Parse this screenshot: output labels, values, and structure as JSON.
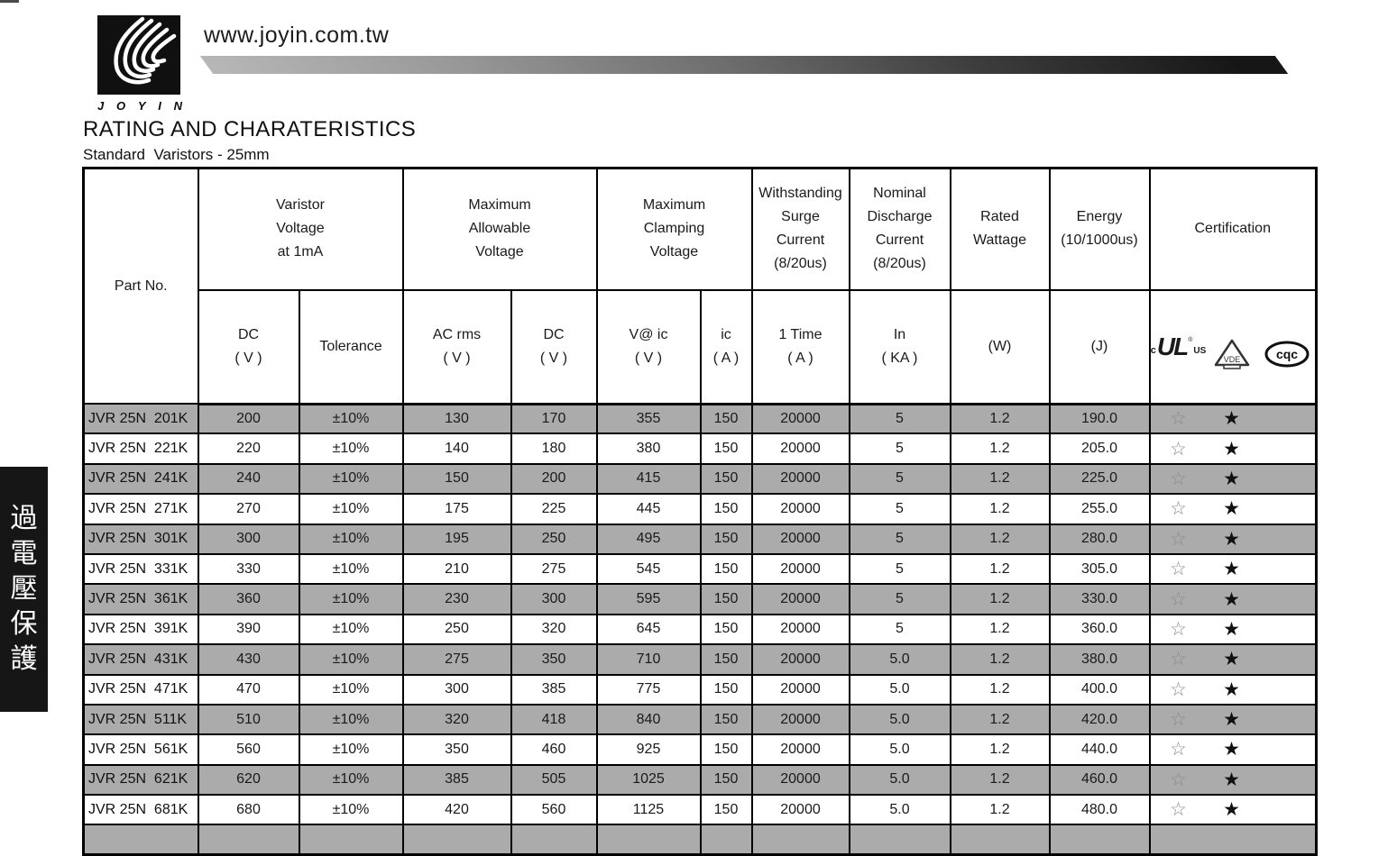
{
  "header": {
    "url_text": "www.joyin.com.tw",
    "logo_text": "JOYIN",
    "title": "RATING AND CHARATERISTICS",
    "subtitle": "Standard  Varistors - 25mm"
  },
  "sidebar": {
    "vertical_text": "過電壓保護"
  },
  "table": {
    "group_headers": {
      "part_no": "Part No.",
      "varistor_voltage": "Varistor\nVoltage\nat 1mA",
      "max_allowable": "Maximum\nAllowable\nVoltage",
      "max_clamping": "Maximum\nClamping\nVoltage",
      "surge": "Withstanding\nSurge\nCurrent\n(8/20us)",
      "discharge": "Nominal\nDischarge\nCurrent\n(8/20us)",
      "rated_wattage": "Rated\nWattage",
      "energy": "Energy\n(10/1000us)",
      "certification": "Certification"
    },
    "sub_headers": {
      "dc_v": "DC\n( V )",
      "tolerance": "Tolerance",
      "ac_rms": "AC rms\n( V )",
      "dc_v2": "DC\n( V )",
      "v_at_ic": "V@ ic\n( V )",
      "ic_a": "ic\n( A )",
      "one_time": "1 Time\n( A )",
      "in_ka": "In\n( KA )",
      "watt": "(W)",
      "joule": "(J)"
    },
    "cert_marks": {
      "ul_c": "c",
      "ul_mark": "UL",
      "ul_reg": "®",
      "ul_us": "US",
      "vde": "VDE",
      "cqc": "cqc"
    },
    "cert_row": {
      "ul_star": "☆",
      "vde_star": "★"
    },
    "rows": [
      {
        "part": "JVR 25N  201K",
        "dc": "200",
        "tol": "±10%",
        "ac": "130",
        "dcv": "170",
        "vic": "355",
        "ic": "150",
        "surge": "20000",
        "inka": "5",
        "w": "1.2",
        "j": "190.0"
      },
      {
        "part": "JVR 25N  221K",
        "dc": "220",
        "tol": "±10%",
        "ac": "140",
        "dcv": "180",
        "vic": "380",
        "ic": "150",
        "surge": "20000",
        "inka": "5",
        "w": "1.2",
        "j": "205.0"
      },
      {
        "part": "JVR 25N  241K",
        "dc": "240",
        "tol": "±10%",
        "ac": "150",
        "dcv": "200",
        "vic": "415",
        "ic": "150",
        "surge": "20000",
        "inka": "5",
        "w": "1.2",
        "j": "225.0"
      },
      {
        "part": "JVR 25N  271K",
        "dc": "270",
        "tol": "±10%",
        "ac": "175",
        "dcv": "225",
        "vic": "445",
        "ic": "150",
        "surge": "20000",
        "inka": "5",
        "w": "1.2",
        "j": "255.0"
      },
      {
        "part": "JVR 25N  301K",
        "dc": "300",
        "tol": "±10%",
        "ac": "195",
        "dcv": "250",
        "vic": "495",
        "ic": "150",
        "surge": "20000",
        "inka": "5",
        "w": "1.2",
        "j": "280.0"
      },
      {
        "part": "JVR 25N  331K",
        "dc": "330",
        "tol": "±10%",
        "ac": "210",
        "dcv": "275",
        "vic": "545",
        "ic": "150",
        "surge": "20000",
        "inka": "5",
        "w": "1.2",
        "j": "305.0"
      },
      {
        "part": "JVR 25N  361K",
        "dc": "360",
        "tol": "±10%",
        "ac": "230",
        "dcv": "300",
        "vic": "595",
        "ic": "150",
        "surge": "20000",
        "inka": "5",
        "w": "1.2",
        "j": "330.0"
      },
      {
        "part": "JVR 25N  391K",
        "dc": "390",
        "tol": "±10%",
        "ac": "250",
        "dcv": "320",
        "vic": "645",
        "ic": "150",
        "surge": "20000",
        "inka": "5",
        "w": "1.2",
        "j": "360.0"
      },
      {
        "part": "JVR 25N  431K",
        "dc": "430",
        "tol": "±10%",
        "ac": "275",
        "dcv": "350",
        "vic": "710",
        "ic": "150",
        "surge": "20000",
        "inka": "5.0",
        "w": "1.2",
        "j": "380.0"
      },
      {
        "part": "JVR 25N  471K",
        "dc": "470",
        "tol": "±10%",
        "ac": "300",
        "dcv": "385",
        "vic": "775",
        "ic": "150",
        "surge": "20000",
        "inka": "5.0",
        "w": "1.2",
        "j": "400.0"
      },
      {
        "part": "JVR 25N  511K",
        "dc": "510",
        "tol": "±10%",
        "ac": "320",
        "dcv": "418",
        "vic": "840",
        "ic": "150",
        "surge": "20000",
        "inka": "5.0",
        "w": "1.2",
        "j": "420.0"
      },
      {
        "part": "JVR 25N  561K",
        "dc": "560",
        "tol": "±10%",
        "ac": "350",
        "dcv": "460",
        "vic": "925",
        "ic": "150",
        "surge": "20000",
        "inka": "5.0",
        "w": "1.2",
        "j": "440.0"
      },
      {
        "part": "JVR 25N  621K",
        "dc": "620",
        "tol": "±10%",
        "ac": "385",
        "dcv": "505",
        "vic": "1025",
        "ic": "150",
        "surge": "20000",
        "inka": "5.0",
        "w": "1.2",
        "j": "460.0"
      },
      {
        "part": "JVR 25N  681K",
        "dc": "680",
        "tol": "±10%",
        "ac": "420",
        "dcv": "560",
        "vic": "1125",
        "ic": "150",
        "surge": "20000",
        "inka": "5.0",
        "w": "1.2",
        "j": "480.0"
      }
    ]
  },
  "colors": {
    "row_stripe": "#ababab",
    "banner_black": "#161616"
  }
}
